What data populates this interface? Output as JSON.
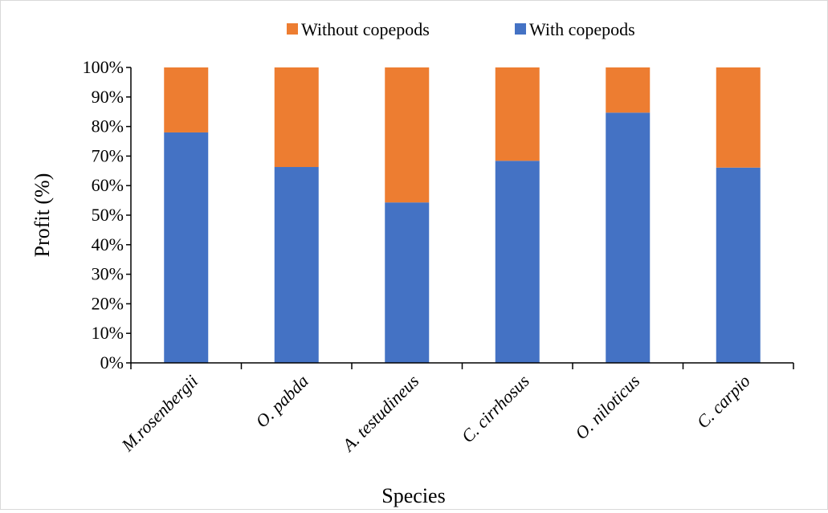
{
  "chart_data": {
    "type": "bar",
    "stacked": true,
    "percent_stacked": true,
    "categories": [
      "M.rosenbergii",
      "O. pabda",
      "A. testudineus",
      "C. cirrhosus",
      "O. niloticus",
      "C. carpio"
    ],
    "series": [
      {
        "name": "With copepods",
        "color": "#4472C4",
        "values": [
          78,
          66.3,
          54.3,
          68.4,
          84.7,
          66.1
        ]
      },
      {
        "name": "Without copepods",
        "color": "#ED7D31",
        "values": [
          22,
          33.7,
          45.7,
          31.6,
          15.3,
          33.9
        ]
      }
    ],
    "legend_order": [
      "Without copepods",
      "With copepods"
    ],
    "legend_position": "top",
    "title": "",
    "xlabel": "Species",
    "ylabel": "Profit (%)",
    "ylim": [
      0,
      100
    ],
    "y_ticks": [
      "0%",
      "10%",
      "20%",
      "30%",
      "40%",
      "50%",
      "60%",
      "70%",
      "80%",
      "90%",
      "100%"
    ],
    "grid": false
  }
}
